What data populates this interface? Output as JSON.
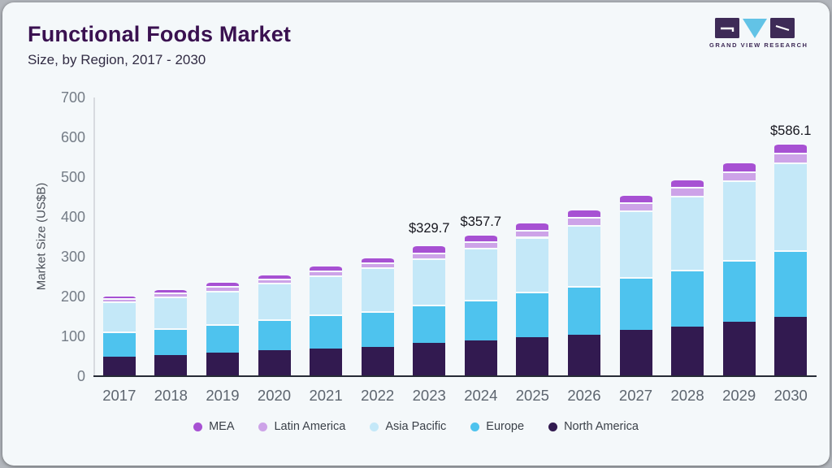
{
  "header": {
    "title": "Functional Foods Market",
    "subtitle": "Size, by Region, 2017 - 2030",
    "logo_text": "GRAND VIEW RESEARCH"
  },
  "colors": {
    "card_bg": "#f4f8fa",
    "title": "#3a1150",
    "mea": "#a751d3",
    "latin_america": "#cda3e8",
    "asia_pacific": "#c4e8f8",
    "europe": "#4ec3ee",
    "north_america": "#321a50",
    "logo_purple": "#3e2b57",
    "logo_blue": "#62c3e6"
  },
  "chart_data": {
    "type": "bar",
    "stacked": true,
    "title": "Functional Foods Market Size, by Region, 2017 - 2030",
    "xlabel": "",
    "ylabel": "Market Size (US$B)",
    "ylim": [
      0,
      700
    ],
    "yticks": [
      0,
      100,
      200,
      300,
      400,
      500,
      600,
      700
    ],
    "grid": false,
    "legend_position": "bottom",
    "categories": [
      "2017",
      "2018",
      "2019",
      "2020",
      "2021",
      "2022",
      "2023",
      "2024",
      "2025",
      "2026",
      "2027",
      "2028",
      "2029",
      "2030"
    ],
    "series": [
      {
        "name": "North America",
        "color": "#321a50",
        "values": [
          49,
          53,
          60,
          65,
          70,
          74,
          84,
          90,
          98,
          104,
          116,
          125,
          137,
          148
        ]
      },
      {
        "name": "Europe",
        "color": "#4ec3ee",
        "values": [
          64,
          68,
          70,
          77,
          85,
          90,
          96,
          102,
          114,
          123,
          132,
          143,
          154,
          168
        ]
      },
      {
        "name": "Asia Pacific",
        "color": "#c4e8f8",
        "values": [
          74,
          80,
          85,
          92,
          99,
          110,
          115.3,
          131,
          138,
          153,
          168,
          186,
          200,
          221.5
        ]
      },
      {
        "name": "Latin America",
        "color": "#cda3e8",
        "values": [
          8,
          10,
          11,
          11,
          12,
          12,
          15,
          16,
          18,
          19,
          20,
          21,
          23,
          24
        ]
      },
      {
        "name": "MEA",
        "color": "#a751d3",
        "values": [
          10,
          10,
          12,
          13,
          14,
          15,
          19.4,
          18.7,
          20,
          21,
          21,
          21,
          25,
          24.6
        ]
      }
    ],
    "totals_labeled": {
      "2023": 329.7,
      "2024": 357.7,
      "2030": 586.1
    },
    "annotations": [
      {
        "category_index": 6,
        "text": "$329.7",
        "lift": 12
      },
      {
        "category_index": 7,
        "text": "$357.7",
        "lift": 7
      },
      {
        "category_index": 13,
        "text": "$586.1",
        "lift": 7
      }
    ],
    "legend": [
      {
        "label": "MEA",
        "color": "#a751d3"
      },
      {
        "label": "Latin America",
        "color": "#cda3e8"
      },
      {
        "label": "Asia Pacific",
        "color": "#c4e8f8"
      },
      {
        "label": "Europe",
        "color": "#4ec3ee"
      },
      {
        "label": "North America",
        "color": "#321a50"
      }
    ]
  }
}
